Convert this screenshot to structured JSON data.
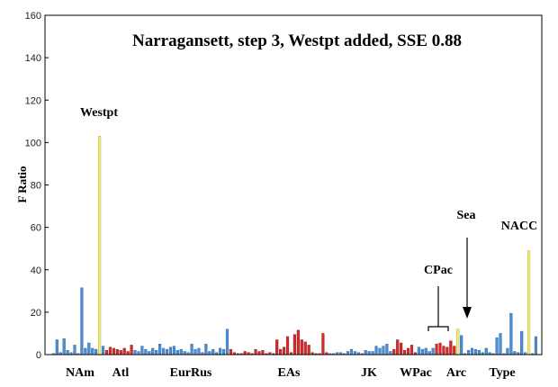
{
  "chart_data": {
    "type": "bar",
    "title": "Narragansett, step 3, Westpt added, SSE 0.88",
    "ylabel": "F Ratio",
    "xlabel": "",
    "ylim": [
      0,
      160
    ],
    "yticks": [
      0,
      20,
      40,
      60,
      80,
      100,
      120,
      140,
      160
    ],
    "grid": false,
    "colors": {
      "blue": "#4a8fd6",
      "red": "#d42b2b",
      "yellow": "#f5f07a",
      "blue_dark": "#2a5f9e",
      "red_dark": "#8a1515",
      "yellow_dark": "#999922"
    },
    "group_labels": [
      "NAm",
      "Atl",
      "EurRus",
      "EAs",
      "JK",
      "WPac",
      "Arc",
      "Type"
    ],
    "annotations": [
      "Westpt",
      "CPac",
      "Sea",
      "NACC"
    ],
    "series": [
      {
        "color": "blue",
        "values": [
          0.5,
          7,
          1,
          7.5,
          2,
          1,
          4.5,
          0.5,
          31.5,
          3,
          5.5,
          3,
          2.5
        ]
      },
      {
        "color": "yellow",
        "values": [
          103
        ]
      },
      {
        "color": "blue",
        "values": [
          4
        ]
      },
      {
        "color": "red",
        "values": [
          2,
          3.5,
          3,
          2.5,
          2,
          3,
          1.5,
          4.5
        ]
      },
      {
        "color": "blue",
        "values": [
          2,
          1.5,
          4,
          2.5,
          1.5,
          3,
          2,
          5,
          3,
          2.5,
          3.5,
          4,
          2,
          2.5,
          1.5,
          1,
          5,
          2.5,
          3,
          1,
          5,
          1.5,
          2.5,
          1,
          3,
          2.5,
          12
        ]
      },
      {
        "color": "red",
        "values": [
          2.5,
          1,
          0.5,
          0.5,
          1.5,
          1,
          0.5,
          2.5,
          1.5,
          2,
          0.5,
          1,
          0.5,
          7,
          2.5,
          3.5,
          8.5,
          1,
          9.5,
          11.5,
          7,
          6,
          4.5,
          1,
          0.5,
          0.5,
          10,
          1
        ]
      },
      {
        "color": "blue",
        "values": [
          0.5,
          0.5,
          1,
          1,
          0.5,
          1.5,
          2.5,
          1.5,
          1,
          0.5,
          2,
          1.5,
          1.5,
          4,
          3,
          4,
          5,
          1.5
        ]
      },
      {
        "color": "red",
        "values": [
          2.5,
          7,
          5.5,
          2,
          3,
          4.5,
          1
        ]
      },
      {
        "color": "blue",
        "values": [
          3.5,
          2.5,
          3,
          1.5,
          3
        ]
      },
      {
        "color": "red",
        "values": [
          5,
          5.5,
          4,
          3.5,
          6.5,
          4
        ]
      },
      {
        "color": "yellow",
        "values": [
          12
        ]
      },
      {
        "color": "blue",
        "values": [
          9,
          0.5,
          2,
          3,
          2.5,
          2,
          1,
          3,
          1,
          0.5,
          8,
          10,
          0.5,
          3,
          19.5,
          1.5,
          1,
          11,
          1
        ]
      },
      {
        "color": "yellow",
        "values": [
          49
        ]
      },
      {
        "color": "blue",
        "values": [
          0.5,
          8.5
        ]
      }
    ]
  }
}
